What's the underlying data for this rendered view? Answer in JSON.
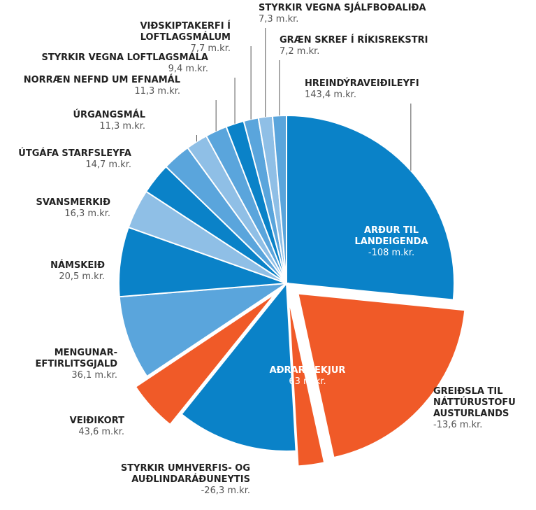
{
  "chart_data": {
    "type": "pie",
    "categories": [
      "HREINDÝRAVEIÐILEYFI",
      "ARÐUR TIL LANDEIGENDA",
      "GREIÐSLA TIL NÁTTÚRUSTOFU AUSTURLANDS",
      "AÐRAR TEKJUR",
      "STYRKIR UMHVERFIS- OG AUÐLINDARÁÐUNEYTIS",
      "VEIÐIKORT",
      "MENGUNAR-EFTIRLITSGJALD",
      "NÁMSKEIÐ",
      "SVANSMERKIÐ",
      "ÚTGÁFA STARFSLEYFA",
      "ÚRGANGSMÁL",
      "NORRÆN NEFND UM EFNAMÁL",
      "STYRKIR VEGNA LOFTLAGSMÁLA",
      "VIÐSKIPTAKERFI Í LOFTLAGSMÁLUM",
      "STYRKIR VEGNA SJÁLFBOÐALIÐA",
      "GRÆN SKREF Í RÍKISREKSTRI"
    ],
    "values": [
      143.4,
      -108,
      -13.6,
      63,
      -26.3,
      43.6,
      36.1,
      20.5,
      16.3,
      14.7,
      11.3,
      11.3,
      9.4,
      7.7,
      7.3,
      7.2
    ],
    "value_labels": [
      "143,4 m.kr.",
      "-108 m.kr.",
      "-13,6 m.kr.",
      "63 m.kr.",
      "-26,3 m.kr.",
      "43,6 m.kr.",
      "36,1 m.kr.",
      "20,5 m.kr.",
      "16,3 m.kr.",
      "14,7 m.kr.",
      "11,3 m.kr.",
      "11,3 m.kr.",
      "9,4 m.kr.",
      "7,7 m.kr.",
      "7,3 m.kr.",
      "7,2 m.kr."
    ],
    "colors": [
      "#0a82c8",
      "#f05a28",
      "#f05a28",
      "#0a82c8",
      "#f05a28",
      "#5aa5dc",
      "#0a82c8",
      "#8fbfe6",
      "#0a82c8",
      "#5aa5dc",
      "#8fbfe6",
      "#5aa5dc",
      "#0a82c8",
      "#5aa5dc",
      "#8fbfe6",
      "#5aa5dc"
    ]
  }
}
